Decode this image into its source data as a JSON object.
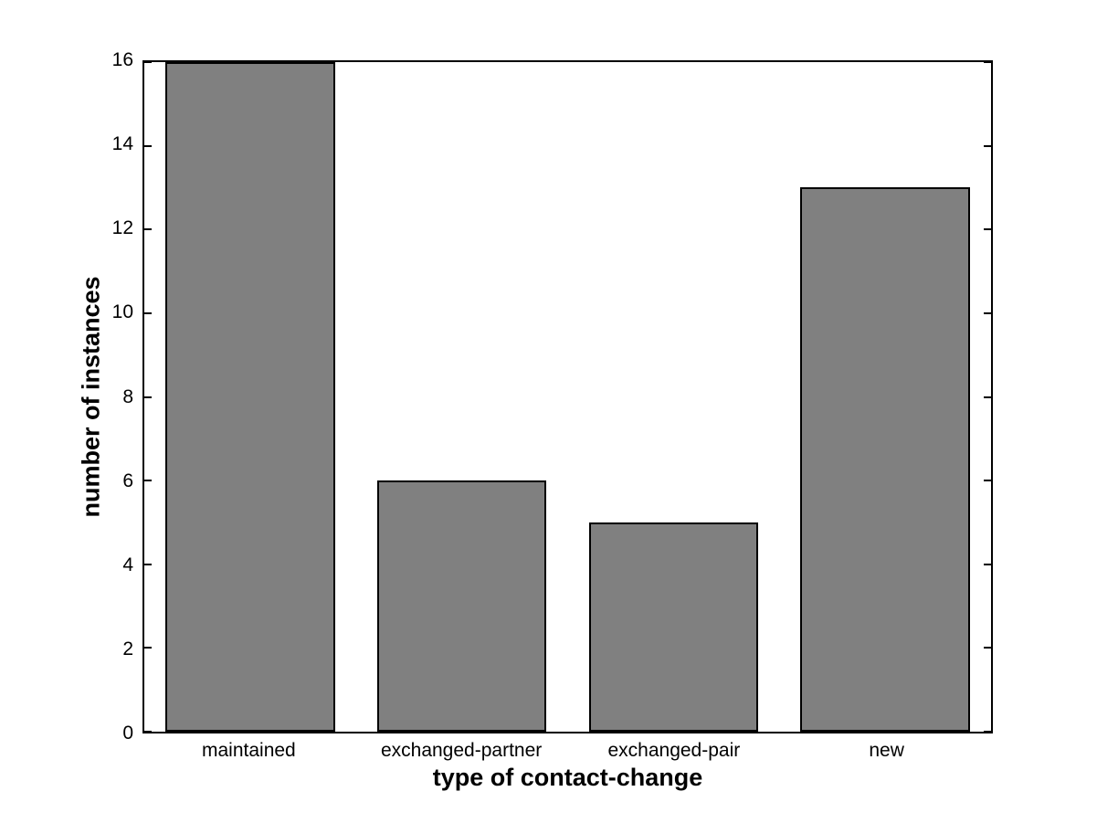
{
  "figure": {
    "background": "#ffffff"
  },
  "chart_data": {
    "type": "bar",
    "xlabel": "type of contact-change",
    "ylabel": "number of instances",
    "categories": [
      "maintained",
      "exchanged-partner",
      "exchanged-pair",
      "new"
    ],
    "values": [
      16,
      6,
      5,
      13
    ],
    "ylim": [
      0,
      16
    ],
    "yticks": [
      0,
      2,
      4,
      6,
      8,
      10,
      12,
      14,
      16
    ],
    "bar_color": "#808080",
    "bar_edge_color": "#000000",
    "axis_color": "#000000",
    "bar_width_fraction": 0.8,
    "grid": false,
    "legend_position": "none"
  }
}
